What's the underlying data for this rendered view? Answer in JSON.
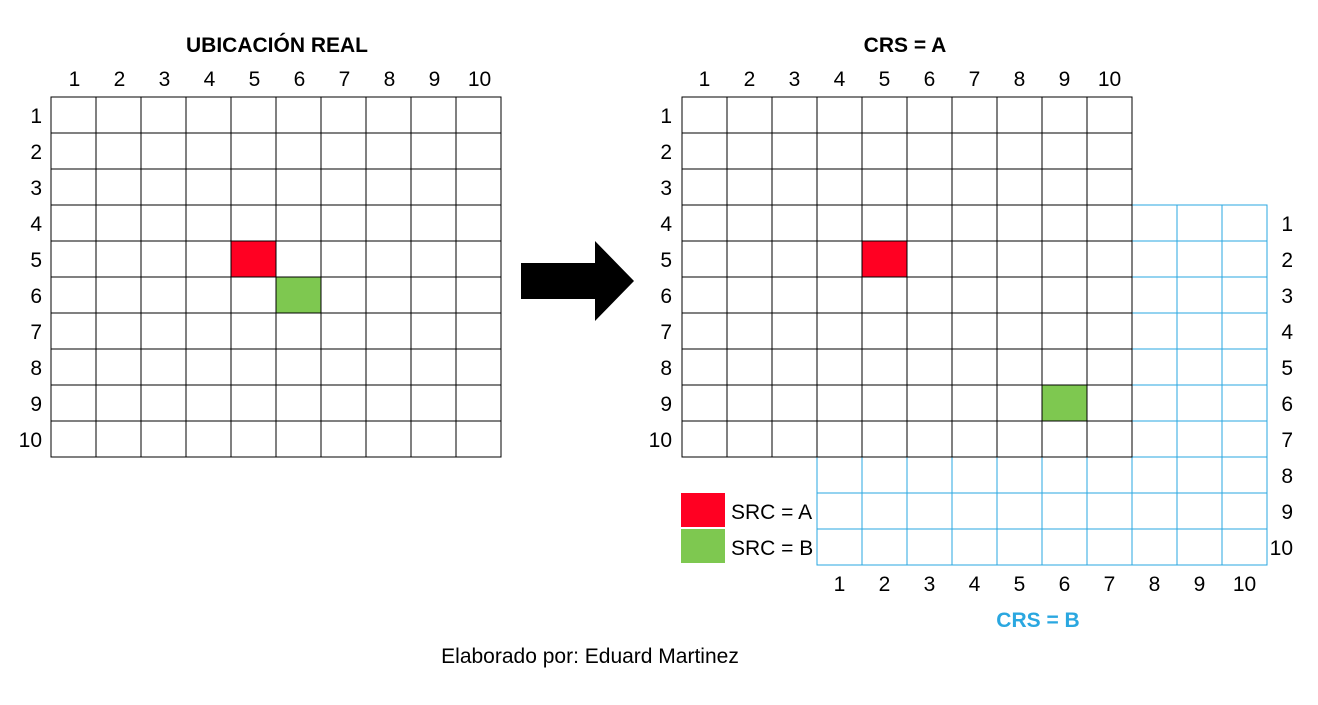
{
  "left_panel": {
    "title": "UBICACIÓN REAL",
    "column_labels": [
      "1",
      "2",
      "3",
      "4",
      "5",
      "6",
      "7",
      "8",
      "9",
      "10"
    ],
    "row_labels": [
      "1",
      "2",
      "3",
      "4",
      "5",
      "6",
      "7",
      "8",
      "9",
      "10"
    ],
    "highlighted_cells": [
      {
        "row": 5,
        "col": 5,
        "color": "#ff0022"
      },
      {
        "row": 6,
        "col": 6,
        "color": "#7ec850"
      }
    ]
  },
  "right_panel": {
    "crs_a": {
      "title": "CRS = A",
      "column_labels": [
        "1",
        "2",
        "3",
        "4",
        "5",
        "6",
        "7",
        "8",
        "9",
        "10"
      ],
      "row_labels": [
        "1",
        "2",
        "3",
        "4",
        "5",
        "6",
        "7",
        "8",
        "9",
        "10"
      ],
      "grid_color": "#000000"
    },
    "crs_b": {
      "title": "CRS = B",
      "column_labels": [
        "1",
        "2",
        "3",
        "4",
        "5",
        "6",
        "7",
        "8",
        "9",
        "10"
      ],
      "row_labels": [
        "1",
        "2",
        "3",
        "4",
        "5",
        "6",
        "7",
        "8",
        "9",
        "10"
      ],
      "grid_color": "#2aa7e0",
      "offset_in_a": {
        "row": 3,
        "col": 3
      }
    },
    "highlighted_cells": [
      {
        "row": 5,
        "col": 5,
        "color": "#ff0022"
      },
      {
        "row": 9,
        "col": 9,
        "color": "#7ec850"
      }
    ]
  },
  "legend": [
    {
      "label": "SRC = A",
      "color": "#ff0022"
    },
    {
      "label": "SRC = B",
      "color": "#7ec850"
    }
  ],
  "footer": "Elaborado por: Eduard Martinez",
  "colors": {
    "red": "#ff0022",
    "green": "#7ec850",
    "blue": "#2aa7e0",
    "black": "#000000"
  },
  "icons": {
    "arrow": "right-arrow-icon"
  }
}
